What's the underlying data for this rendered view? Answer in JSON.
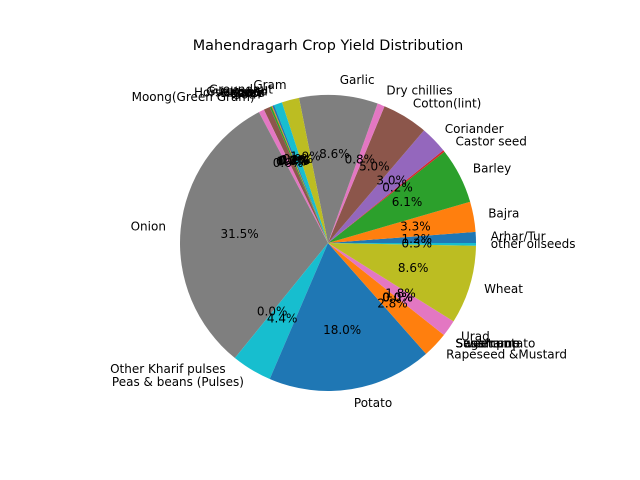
{
  "chart_data": {
    "type": "pie",
    "title": "Mahendragarh Crop Yield Distribution",
    "start_angle_deg": 0,
    "direction": "counterclockwise",
    "autopct_format": "%.1f%%",
    "slices": [
      {
        "label": "Arhar/Tur",
        "value": 1.2,
        "pct_text": "1.2%",
        "color": "#1f77b4"
      },
      {
        "label": "Bajra",
        "value": 3.3,
        "pct_text": "3.3%",
        "color": "#ff7f0e"
      },
      {
        "label": "Barley",
        "value": 6.1,
        "pct_text": "6.1%",
        "color": "#2ca02c"
      },
      {
        "label": "Castor seed",
        "value": 0.2,
        "pct_text": "0.2%",
        "color": "#d62728"
      },
      {
        "label": "Coriander",
        "value": 3.0,
        "pct_text": "3.0%",
        "color": "#9467bd"
      },
      {
        "label": "Cotton(lint)",
        "value": 5.0,
        "pct_text": "5.0%",
        "color": "#8c564b"
      },
      {
        "label": "Dry chillies",
        "value": 0.8,
        "pct_text": "0.8%",
        "color": "#e377c2"
      },
      {
        "label": "Garlic",
        "value": 8.6,
        "pct_text": "8.6%",
        "color": "#7f7f7f"
      },
      {
        "label": "Gram",
        "value": 1.9,
        "pct_text": "1.9%",
        "color": "#bcbd22"
      },
      {
        "label": "Groundnut",
        "value": 0.9,
        "pct_text": "0.9%",
        "color": "#17becf"
      },
      {
        "label": "Guar seed",
        "value": 0.2,
        "pct_text": "0.2%",
        "color": "#1f77b4"
      },
      {
        "label": "Jowar",
        "value": 0.1,
        "pct_text": "0.1%",
        "color": "#ff7f0e"
      },
      {
        "label": "Horse-gram",
        "value": 0.2,
        "pct_text": "0.2%",
        "color": "#2ca02c"
      },
      {
        "label": "Maize",
        "value": 0.0,
        "pct_text": "0.0%",
        "color": "#d62728"
      },
      {
        "label": "Masoor",
        "value": 0.0,
        "pct_text": "0.0%",
        "color": "#9467bd"
      },
      {
        "label": "Moth",
        "value": 0.7,
        "pct_text": "0.7%",
        "color": "#8c564b"
      },
      {
        "label": "Moong(Green Gram)",
        "value": 0.6,
        "pct_text": "0.6%",
        "color": "#e377c2"
      },
      {
        "label": "Onion",
        "value": 31.5,
        "pct_text": "31.5%",
        "color": "#7f7f7f"
      },
      {
        "label": "Other Kharif pulses",
        "value": 0.0,
        "pct_text": "0.0%",
        "color": "#bcbd22"
      },
      {
        "label": "Peas & beans (Pulses)",
        "value": 4.4,
        "pct_text": "4.4%",
        "color": "#17becf"
      },
      {
        "label": "Potato",
        "value": 18.0,
        "pct_text": "18.0%",
        "color": "#1f77b4"
      },
      {
        "label": "Rapeseed &Mustard",
        "value": 2.8,
        "pct_text": "2.8%",
        "color": "#ff7f0e"
      },
      {
        "label": "Sannhamp",
        "value": 0.0,
        "pct_text": "0.0%",
        "color": "#2ca02c"
      },
      {
        "label": "Sesamum",
        "value": 0.0,
        "pct_text": "0.0%",
        "color": "#d62728"
      },
      {
        "label": "Sugarcane",
        "value": 0.0,
        "pct_text": "0.0%",
        "color": "#9467bd"
      },
      {
        "label": "Sweet potato",
        "value": 0.0,
        "pct_text": "0.0%",
        "color": "#8c564b"
      },
      {
        "label": "Urad",
        "value": 1.8,
        "pct_text": "1.8%",
        "color": "#e377c2"
      },
      {
        "label": "Wheat",
        "value": 8.6,
        "pct_text": "8.6%",
        "color": "#bcbd22"
      },
      {
        "label": "other oilseeds",
        "value": 0.3,
        "pct_text": "0.3%",
        "color": "#17becf"
      }
    ]
  }
}
